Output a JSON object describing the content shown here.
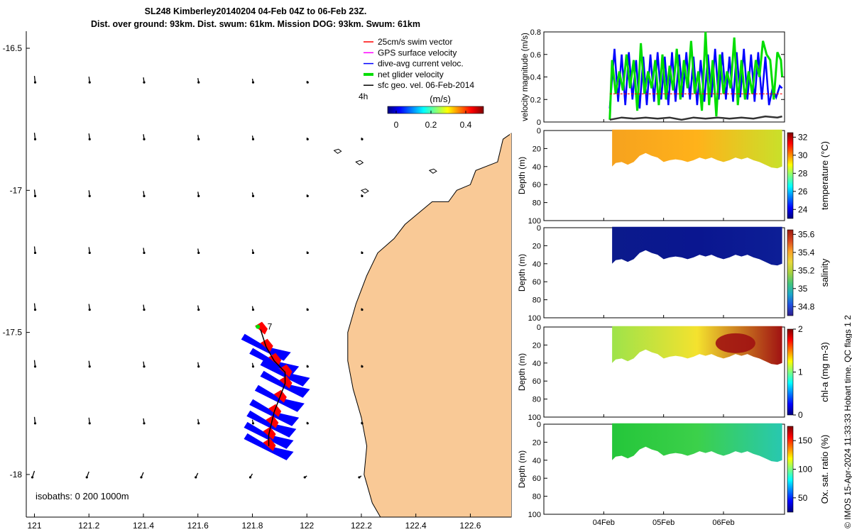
{
  "header": {
    "line1": "SL248 Kimberley20140204 04-Feb 04Z to 06-Feb 23Z.",
    "line2": "Dist. over ground: 93km. Dist. swum: 61km. Mission DOG: 93km. Swum: 61km"
  },
  "colors": {
    "land": "#f9c996",
    "track_red": "#ff0000",
    "track_blue": "#0000ff",
    "green": "#00dd00",
    "black": "#000000"
  },
  "map": {
    "lon_ticks": [
      "121",
      "121.2",
      "121.4",
      "121.6",
      "121.8",
      "122",
      "122.2",
      "122.4",
      "122.6"
    ],
    "lat_ticks": [
      "-16.5",
      "-17",
      "-17.5",
      "-18"
    ],
    "lon_range": [
      120.97,
      122.75
    ],
    "lat_range": [
      -18.15,
      -16.44
    ],
    "legend": [
      {
        "label": "25cm/s swim vector",
        "color": "#ff0000"
      },
      {
        "label": "GPS surface velocity",
        "color": "#ff00ff"
      },
      {
        "label": "dive-avg current veloc.",
        "color": "#0000ff"
      },
      {
        "label": "net glider velocity",
        "color": "#00dd00"
      },
      {
        "label": "sfc geo. vel. 06-Feb-2014",
        "color": "#000000"
      }
    ],
    "time_step_label": "4h",
    "colorbar_title": "(m/s)",
    "colorbar_ticks": [
      "0",
      "0.2",
      "0.4"
    ],
    "track_end_label": "7",
    "isobaths_label": "isobaths: 0   200  1000m"
  },
  "velocity_panel": {
    "ylabel": "velocity magnitude (m/s)",
    "yticks": [
      "0",
      "0.2",
      "0.4",
      "0.6",
      "0.8"
    ],
    "ylim": [
      0,
      0.8
    ]
  },
  "depth_panels": [
    {
      "name": "temperature",
      "cbar_label": "temperature (°C)",
      "cbar_ticks": [
        "24",
        "26",
        "28",
        "30",
        "32"
      ],
      "ylabel": "Depth (m)"
    },
    {
      "name": "salinity",
      "cbar_label": "salinity",
      "cbar_ticks": [
        "34.8",
        "35",
        "35.2",
        "35.4",
        "35.6"
      ],
      "ylabel": "Depth (m)"
    },
    {
      "name": "chl-a",
      "cbar_label": "chl-a (mg m-3)",
      "cbar_ticks": [
        "0",
        "1",
        "2"
      ],
      "ylabel": "Depth (m)"
    },
    {
      "name": "oxygen",
      "cbar_label": "Ox. sat. ratio (%)",
      "cbar_ticks": [
        "50",
        "100",
        "150"
      ],
      "ylabel": "Depth (m)"
    }
  ],
  "depth_ticks": [
    "0",
    "20",
    "40",
    "60",
    "80",
    "100"
  ],
  "time_ticks": [
    "04Feb",
    "05Feb",
    "06Feb"
  ],
  "side_note": "© IMOS 15-Apr-2024 11:33:33 Hobart time. QC flags 1  2",
  "chart_data": {
    "type": "line",
    "title": "velocity magnitude",
    "x_days": [
      4.0,
      6.98
    ],
    "ylim": [
      0,
      0.8
    ],
    "series": [
      {
        "name": "dive-avg current veloc.",
        "color": "#0000ff",
        "x": [
          4.1,
          4.18,
          4.24,
          4.3,
          4.36,
          4.42,
          4.48,
          4.54,
          4.6,
          4.66,
          4.72,
          4.78,
          4.84,
          4.9,
          4.96,
          5.02,
          5.08,
          5.14,
          5.2,
          5.26,
          5.32,
          5.38,
          5.44,
          5.5,
          5.56,
          5.62,
          5.68,
          5.74,
          5.8,
          5.86,
          5.92,
          5.98,
          6.04,
          6.1,
          6.16,
          6.22,
          6.28,
          6.34,
          6.4,
          6.46,
          6.52,
          6.58,
          6.64,
          6.7,
          6.76,
          6.82,
          6.88,
          6.94,
          6.98
        ],
        "values": [
          0.12,
          0.65,
          0.18,
          0.6,
          0.15,
          0.62,
          0.2,
          0.55,
          0.12,
          0.58,
          0.15,
          0.6,
          0.18,
          0.62,
          0.2,
          0.58,
          0.15,
          0.62,
          0.18,
          0.6,
          0.22,
          0.62,
          0.2,
          0.58,
          0.15,
          0.55,
          0.18,
          0.6,
          0.22,
          0.65,
          0.2,
          0.62,
          0.2,
          0.58,
          0.18,
          0.62,
          0.22,
          0.65,
          0.2,
          0.6,
          0.18,
          0.62,
          0.2,
          0.58,
          0.15,
          0.3,
          0.22,
          0.32,
          0.3
        ]
      },
      {
        "name": "net glider velocity",
        "color": "#00dd00",
        "x": [
          4.1,
          4.14,
          4.2,
          4.26,
          4.32,
          4.38,
          4.44,
          4.5,
          4.56,
          4.62,
          4.68,
          4.74,
          4.8,
          4.86,
          4.92,
          4.98,
          5.04,
          5.1,
          5.16,
          5.22,
          5.28,
          5.34,
          5.4,
          5.46,
          5.52,
          5.58,
          5.64,
          5.7,
          5.76,
          5.82,
          5.88,
          5.94,
          6.0,
          6.06,
          6.12,
          6.18,
          6.24,
          6.3,
          6.36,
          6.42,
          6.48,
          6.54,
          6.6,
          6.66,
          6.72,
          6.78,
          6.84,
          6.9,
          6.96,
          6.98
        ],
        "values": [
          0.02,
          0.55,
          0.25,
          0.45,
          0.28,
          0.6,
          0.3,
          0.55,
          0.1,
          0.7,
          0.25,
          0.45,
          0.3,
          0.55,
          0.15,
          0.6,
          0.2,
          0.5,
          0.28,
          0.65,
          0.2,
          0.55,
          0.3,
          0.72,
          0.25,
          0.45,
          0.1,
          0.8,
          0.15,
          0.55,
          0.05,
          0.6,
          0.25,
          0.45,
          0.3,
          0.75,
          0.15,
          0.55,
          0.2,
          0.45,
          0.25,
          0.55,
          0.4,
          0.72,
          0.6,
          0.55,
          0.2,
          0.62,
          0.55,
          0.4
        ]
      },
      {
        "name": "25cm/s swim vector",
        "color": "#ff0000",
        "x": [
          4.1,
          6.98
        ],
        "values": [
          0.25,
          0.25
        ]
      },
      {
        "name": "sfc geo. vel.",
        "color": "#333333",
        "x": [
          4.1,
          4.3,
          4.5,
          4.7,
          4.9,
          5.1,
          5.3,
          5.5,
          5.7,
          5.9,
          6.1,
          6.3,
          6.5,
          6.7,
          6.9,
          6.98
        ],
        "values": [
          0.02,
          0.04,
          0.03,
          0.04,
          0.03,
          0.04,
          0.02,
          0.04,
          0.03,
          0.04,
          0.03,
          0.04,
          0.03,
          0.05,
          0.04,
          0.05
        ]
      }
    ]
  }
}
